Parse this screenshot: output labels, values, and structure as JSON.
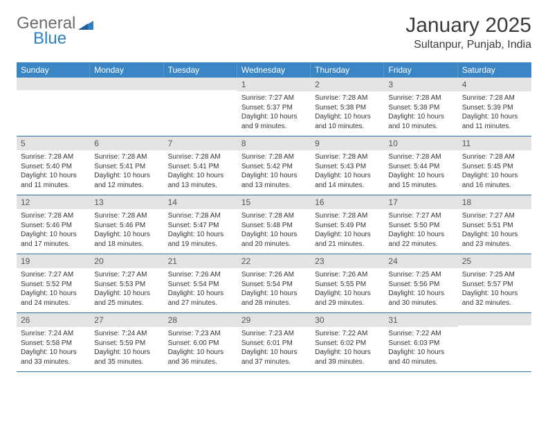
{
  "brand": {
    "part1": "General",
    "part2": "Blue"
  },
  "title": "January 2025",
  "location": "Sultanpur, Punjab, India",
  "colors": {
    "header_bg": "#3a86c5",
    "header_text": "#ffffff",
    "daynum_bg": "#e3e3e3",
    "week_border": "#2f6aa0",
    "text": "#333333",
    "logo_gray": "#6b6b6b",
    "logo_blue": "#2f7fc0"
  },
  "weekdays": [
    "Sunday",
    "Monday",
    "Tuesday",
    "Wednesday",
    "Thursday",
    "Friday",
    "Saturday"
  ],
  "weeks": [
    [
      {
        "n": "",
        "sr": "",
        "ss": "",
        "d1": "",
        "d2": ""
      },
      {
        "n": "",
        "sr": "",
        "ss": "",
        "d1": "",
        "d2": ""
      },
      {
        "n": "",
        "sr": "",
        "ss": "",
        "d1": "",
        "d2": ""
      },
      {
        "n": "1",
        "sr": "Sunrise: 7:27 AM",
        "ss": "Sunset: 5:37 PM",
        "d1": "Daylight: 10 hours",
        "d2": "and 9 minutes."
      },
      {
        "n": "2",
        "sr": "Sunrise: 7:28 AM",
        "ss": "Sunset: 5:38 PM",
        "d1": "Daylight: 10 hours",
        "d2": "and 10 minutes."
      },
      {
        "n": "3",
        "sr": "Sunrise: 7:28 AM",
        "ss": "Sunset: 5:38 PM",
        "d1": "Daylight: 10 hours",
        "d2": "and 10 minutes."
      },
      {
        "n": "4",
        "sr": "Sunrise: 7:28 AM",
        "ss": "Sunset: 5:39 PM",
        "d1": "Daylight: 10 hours",
        "d2": "and 11 minutes."
      }
    ],
    [
      {
        "n": "5",
        "sr": "Sunrise: 7:28 AM",
        "ss": "Sunset: 5:40 PM",
        "d1": "Daylight: 10 hours",
        "d2": "and 11 minutes."
      },
      {
        "n": "6",
        "sr": "Sunrise: 7:28 AM",
        "ss": "Sunset: 5:41 PM",
        "d1": "Daylight: 10 hours",
        "d2": "and 12 minutes."
      },
      {
        "n": "7",
        "sr": "Sunrise: 7:28 AM",
        "ss": "Sunset: 5:41 PM",
        "d1": "Daylight: 10 hours",
        "d2": "and 13 minutes."
      },
      {
        "n": "8",
        "sr": "Sunrise: 7:28 AM",
        "ss": "Sunset: 5:42 PM",
        "d1": "Daylight: 10 hours",
        "d2": "and 13 minutes."
      },
      {
        "n": "9",
        "sr": "Sunrise: 7:28 AM",
        "ss": "Sunset: 5:43 PM",
        "d1": "Daylight: 10 hours",
        "d2": "and 14 minutes."
      },
      {
        "n": "10",
        "sr": "Sunrise: 7:28 AM",
        "ss": "Sunset: 5:44 PM",
        "d1": "Daylight: 10 hours",
        "d2": "and 15 minutes."
      },
      {
        "n": "11",
        "sr": "Sunrise: 7:28 AM",
        "ss": "Sunset: 5:45 PM",
        "d1": "Daylight: 10 hours",
        "d2": "and 16 minutes."
      }
    ],
    [
      {
        "n": "12",
        "sr": "Sunrise: 7:28 AM",
        "ss": "Sunset: 5:46 PM",
        "d1": "Daylight: 10 hours",
        "d2": "and 17 minutes."
      },
      {
        "n": "13",
        "sr": "Sunrise: 7:28 AM",
        "ss": "Sunset: 5:46 PM",
        "d1": "Daylight: 10 hours",
        "d2": "and 18 minutes."
      },
      {
        "n": "14",
        "sr": "Sunrise: 7:28 AM",
        "ss": "Sunset: 5:47 PM",
        "d1": "Daylight: 10 hours",
        "d2": "and 19 minutes."
      },
      {
        "n": "15",
        "sr": "Sunrise: 7:28 AM",
        "ss": "Sunset: 5:48 PM",
        "d1": "Daylight: 10 hours",
        "d2": "and 20 minutes."
      },
      {
        "n": "16",
        "sr": "Sunrise: 7:28 AM",
        "ss": "Sunset: 5:49 PM",
        "d1": "Daylight: 10 hours",
        "d2": "and 21 minutes."
      },
      {
        "n": "17",
        "sr": "Sunrise: 7:27 AM",
        "ss": "Sunset: 5:50 PM",
        "d1": "Daylight: 10 hours",
        "d2": "and 22 minutes."
      },
      {
        "n": "18",
        "sr": "Sunrise: 7:27 AM",
        "ss": "Sunset: 5:51 PM",
        "d1": "Daylight: 10 hours",
        "d2": "and 23 minutes."
      }
    ],
    [
      {
        "n": "19",
        "sr": "Sunrise: 7:27 AM",
        "ss": "Sunset: 5:52 PM",
        "d1": "Daylight: 10 hours",
        "d2": "and 24 minutes."
      },
      {
        "n": "20",
        "sr": "Sunrise: 7:27 AM",
        "ss": "Sunset: 5:53 PM",
        "d1": "Daylight: 10 hours",
        "d2": "and 25 minutes."
      },
      {
        "n": "21",
        "sr": "Sunrise: 7:26 AM",
        "ss": "Sunset: 5:54 PM",
        "d1": "Daylight: 10 hours",
        "d2": "and 27 minutes."
      },
      {
        "n": "22",
        "sr": "Sunrise: 7:26 AM",
        "ss": "Sunset: 5:54 PM",
        "d1": "Daylight: 10 hours",
        "d2": "and 28 minutes."
      },
      {
        "n": "23",
        "sr": "Sunrise: 7:26 AM",
        "ss": "Sunset: 5:55 PM",
        "d1": "Daylight: 10 hours",
        "d2": "and 29 minutes."
      },
      {
        "n": "24",
        "sr": "Sunrise: 7:25 AM",
        "ss": "Sunset: 5:56 PM",
        "d1": "Daylight: 10 hours",
        "d2": "and 30 minutes."
      },
      {
        "n": "25",
        "sr": "Sunrise: 7:25 AM",
        "ss": "Sunset: 5:57 PM",
        "d1": "Daylight: 10 hours",
        "d2": "and 32 minutes."
      }
    ],
    [
      {
        "n": "26",
        "sr": "Sunrise: 7:24 AM",
        "ss": "Sunset: 5:58 PM",
        "d1": "Daylight: 10 hours",
        "d2": "and 33 minutes."
      },
      {
        "n": "27",
        "sr": "Sunrise: 7:24 AM",
        "ss": "Sunset: 5:59 PM",
        "d1": "Daylight: 10 hours",
        "d2": "and 35 minutes."
      },
      {
        "n": "28",
        "sr": "Sunrise: 7:23 AM",
        "ss": "Sunset: 6:00 PM",
        "d1": "Daylight: 10 hours",
        "d2": "and 36 minutes."
      },
      {
        "n": "29",
        "sr": "Sunrise: 7:23 AM",
        "ss": "Sunset: 6:01 PM",
        "d1": "Daylight: 10 hours",
        "d2": "and 37 minutes."
      },
      {
        "n": "30",
        "sr": "Sunrise: 7:22 AM",
        "ss": "Sunset: 6:02 PM",
        "d1": "Daylight: 10 hours",
        "d2": "and 39 minutes."
      },
      {
        "n": "31",
        "sr": "Sunrise: 7:22 AM",
        "ss": "Sunset: 6:03 PM",
        "d1": "Daylight: 10 hours",
        "d2": "and 40 minutes."
      },
      {
        "n": "",
        "sr": "",
        "ss": "",
        "d1": "",
        "d2": ""
      }
    ]
  ]
}
